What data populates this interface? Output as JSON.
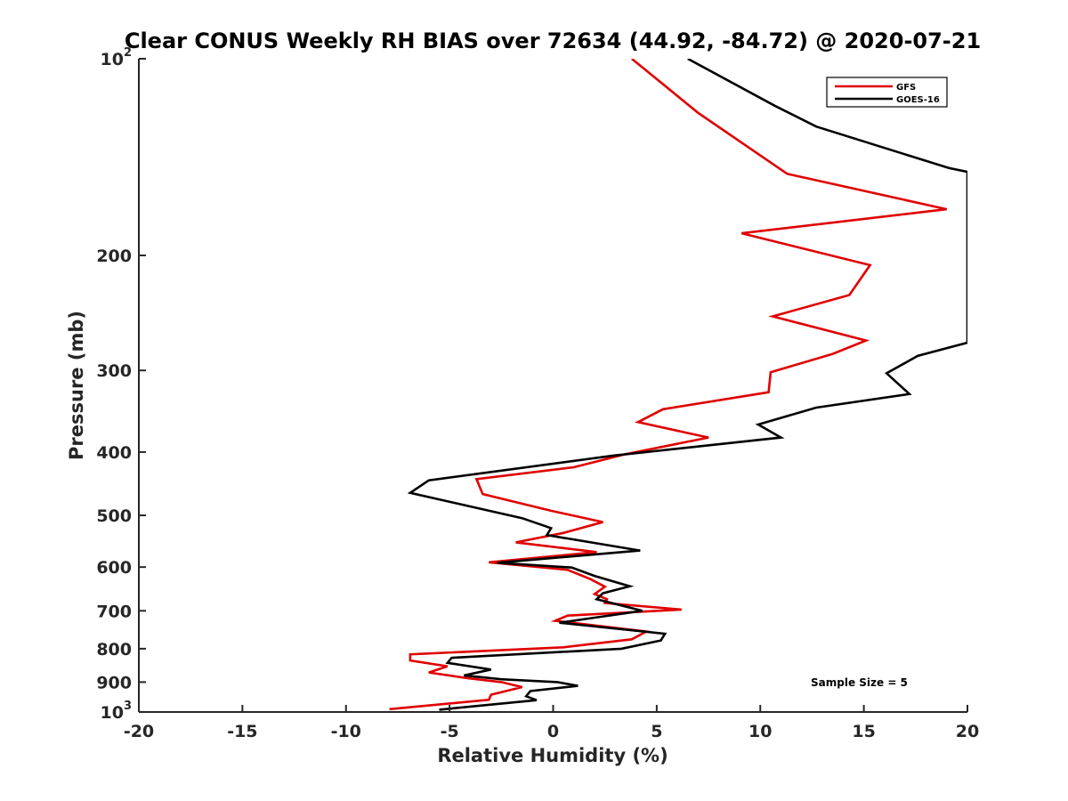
{
  "colors": {
    "gfs": "#e00000",
    "goes": "#000000",
    "axis": "#262626"
  },
  "chart_data": {
    "type": "line",
    "title": "Clear CONUS Weekly RH BIAS over 72634 (44.92, -84.72) @ 2020-07-21",
    "xlabel": "Relative Humidity (%)",
    "ylabel": "Pressure (mb)",
    "xlim": [
      -20,
      20
    ],
    "ylim": [
      1000,
      100
    ],
    "yscale": "log",
    "xticks": [
      -20,
      -15,
      -10,
      -5,
      0,
      5,
      10,
      15,
      20
    ],
    "xtick_labels": [
      "-20",
      "-15",
      "-10",
      "-5",
      "0",
      "5",
      "10",
      "15",
      "20"
    ],
    "yticks_plain": [
      {
        "value": 200,
        "label": "200"
      },
      {
        "value": 300,
        "label": "300"
      },
      {
        "value": 400,
        "label": "400"
      },
      {
        "value": 500,
        "label": "500"
      },
      {
        "value": 600,
        "label": "600"
      },
      {
        "value": 700,
        "label": "700"
      },
      {
        "value": 800,
        "label": "800"
      },
      {
        "value": 900,
        "label": "900"
      }
    ],
    "yticks_pow": [
      {
        "value": 100,
        "base": "10",
        "exp": "2"
      },
      {
        "value": 1000,
        "base": "10",
        "exp": "3"
      }
    ],
    "legend_position": "top-right",
    "annotation": "Sample Size = 5",
    "series": [
      {
        "name": "GFS",
        "color": "#e00000",
        "points": [
          [
            3.8,
            100
          ],
          [
            7.0,
            121
          ],
          [
            11.3,
            150
          ],
          [
            19.0,
            170
          ],
          [
            9.1,
            185
          ],
          [
            15.3,
            207
          ],
          [
            14.3,
            230
          ],
          [
            10.6,
            248
          ],
          [
            15.1,
            270
          ],
          [
            13.5,
            283
          ],
          [
            10.5,
            302
          ],
          [
            10.4,
            324
          ],
          [
            5.3,
            344
          ],
          [
            4.1,
            360
          ],
          [
            7.5,
            380
          ],
          [
            3.5,
            403
          ],
          [
            1.0,
            422
          ],
          [
            -3.7,
            440
          ],
          [
            -3.4,
            464
          ],
          [
            -0.1,
            492
          ],
          [
            2.4,
            512
          ],
          [
            0.5,
            532
          ],
          [
            -1.8,
            550
          ],
          [
            2.1,
            569
          ],
          [
            -3.1,
            590
          ],
          [
            0.7,
            606
          ],
          [
            1.8,
            626
          ],
          [
            2.5,
            643
          ],
          [
            2.0,
            660
          ],
          [
            2.6,
            672
          ],
          [
            2.5,
            681
          ],
          [
            6.2,
            697
          ],
          [
            0.7,
            712
          ],
          [
            0.1,
            725
          ],
          [
            4.5,
            753
          ],
          [
            3.8,
            774
          ],
          [
            0.5,
            796
          ],
          [
            -6.9,
            816
          ],
          [
            -6.9,
            834
          ],
          [
            -5.1,
            851
          ],
          [
            -6.0,
            870
          ],
          [
            -4.1,
            888
          ],
          [
            -2.5,
            900
          ],
          [
            -1.5,
            916
          ],
          [
            -3.0,
            941
          ],
          [
            -3.1,
            958
          ],
          [
            -7.9,
            990
          ]
        ]
      },
      {
        "name": "GOES-16",
        "color": "#000000",
        "points": [
          [
            6.5,
            100
          ],
          [
            10.7,
            118
          ],
          [
            12.7,
            127
          ],
          [
            19.1,
            147
          ],
          [
            20.0,
            149
          ],
          [
            20.0,
            272
          ],
          [
            17.6,
            285
          ],
          [
            16.1,
            303
          ],
          [
            17.2,
            326
          ],
          [
            12.7,
            342
          ],
          [
            9.9,
            363
          ],
          [
            11.0,
            380
          ],
          [
            2.9,
            405
          ],
          [
            -6.0,
            442
          ],
          [
            -6.9,
            462
          ],
          [
            -1.5,
            505
          ],
          [
            -0.1,
            523
          ],
          [
            -0.3,
            536
          ],
          [
            4.2,
            566
          ],
          [
            -2.7,
            591
          ],
          [
            0.9,
            601
          ],
          [
            2.0,
            619
          ],
          [
            3.7,
            642
          ],
          [
            2.4,
            658
          ],
          [
            2.1,
            672
          ],
          [
            4.3,
            700
          ],
          [
            2.0,
            717
          ],
          [
            0.3,
            730
          ],
          [
            5.4,
            759
          ],
          [
            5.2,
            777
          ],
          [
            3.3,
            800
          ],
          [
            -4.9,
            826
          ],
          [
            -5.1,
            841
          ],
          [
            -3.0,
            861
          ],
          [
            -4.3,
            879
          ],
          [
            -2.5,
            891
          ],
          [
            0.2,
            900
          ],
          [
            1.2,
            912
          ],
          [
            -1.1,
            929
          ],
          [
            -1.3,
            946
          ],
          [
            -0.8,
            959
          ],
          [
            -5.5,
            992
          ]
        ]
      }
    ]
  }
}
